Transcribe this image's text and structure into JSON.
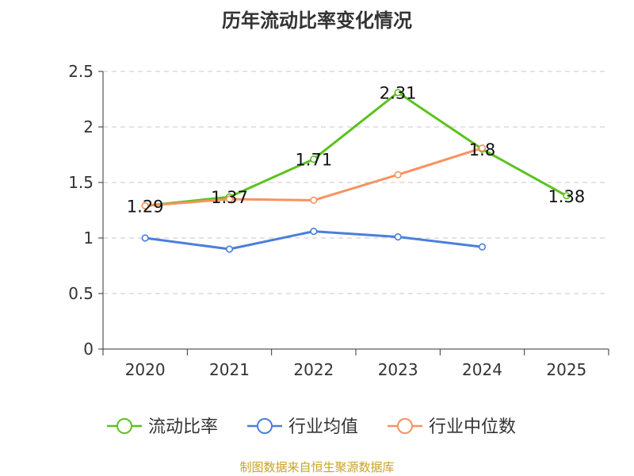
{
  "chart_data": {
    "type": "line",
    "title": "历年流动比率变化情况",
    "source": "制图数据来自恒生聚源数据库",
    "xlabel": "",
    "ylabel": "",
    "ylim": [
      0,
      2.5
    ],
    "yticks": [
      0,
      0.5,
      1,
      1.5,
      2,
      2.5
    ],
    "ytick_labels": [
      "0",
      "0.5",
      "1",
      "1.5",
      "2",
      "2.5"
    ],
    "categories": [
      "2020",
      "2021",
      "2022",
      "2023",
      "2024",
      "2025"
    ],
    "grid": true,
    "legend_position": "bottom",
    "series": [
      {
        "name": "流动比率",
        "color": "#5cc21f",
        "values": [
          1.29,
          1.37,
          1.71,
          2.31,
          1.8,
          1.38
        ],
        "labels": [
          "1.29",
          "1.37",
          "1.71",
          "2.31",
          "1.8",
          "1.38"
        ],
        "show_labels": true
      },
      {
        "name": "行业均值",
        "color": "#4a7fdc",
        "values": [
          1.0,
          0.9,
          1.06,
          1.01,
          0.92,
          null
        ],
        "show_labels": false
      },
      {
        "name": "行业中位数",
        "color": "#f8935f",
        "values": [
          1.29,
          1.35,
          1.34,
          1.57,
          1.81,
          null
        ],
        "show_labels": false
      }
    ]
  }
}
